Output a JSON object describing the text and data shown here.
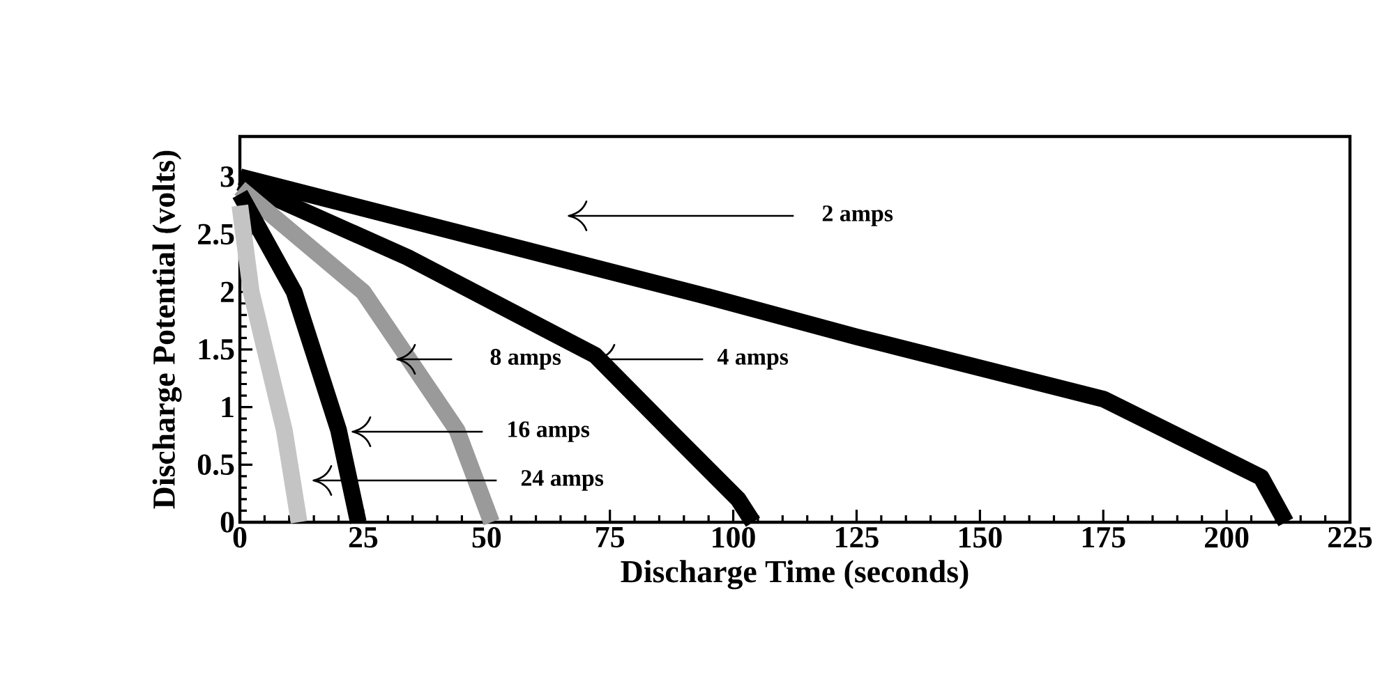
{
  "chart_data": {
    "type": "line",
    "xlabel": "Discharge Time (seconds)",
    "ylabel": "Discharge Potential (volts)",
    "xlim": [
      0,
      225
    ],
    "ylim": [
      0,
      3.35
    ],
    "xticks": [
      0,
      25,
      50,
      75,
      100,
      125,
      150,
      175,
      200,
      225
    ],
    "yticks": [
      0,
      0.5,
      1,
      1.5,
      2,
      2.5,
      3
    ],
    "grid": false,
    "marker": "none",
    "line_style": "solid",
    "series": [
      {
        "color": "#000000",
        "x": [
          0,
          93,
          125,
          175,
          207,
          212
        ],
        "values": [
          3.0,
          1.98,
          1.61,
          1.07,
          0.39,
          0
        ]
      },
      {
        "color": "#000000",
        "x": [
          0,
          34,
          72,
          87,
          101,
          104
        ],
        "values": [
          2.95,
          2.3,
          1.45,
          0.8,
          0.2,
          0
        ]
      },
      {
        "color": "#9a9a9a",
        "x": [
          0,
          25,
          44,
          51
        ],
        "values": [
          2.9,
          2.0,
          0.8,
          0
        ]
      },
      {
        "color": "#000000",
        "x": [
          0,
          11,
          20,
          24
        ],
        "values": [
          2.85,
          2.0,
          0.8,
          0
        ]
      },
      {
        "color": "#c4c4c4",
        "x": [
          0,
          2.3,
          9,
          12
        ],
        "values": [
          2.75,
          2.0,
          0.8,
          0
        ]
      }
    ],
    "annotations": [
      "2 amps",
      "8 amps",
      "4 amps",
      "16 amps",
      "24 amps"
    ]
  }
}
